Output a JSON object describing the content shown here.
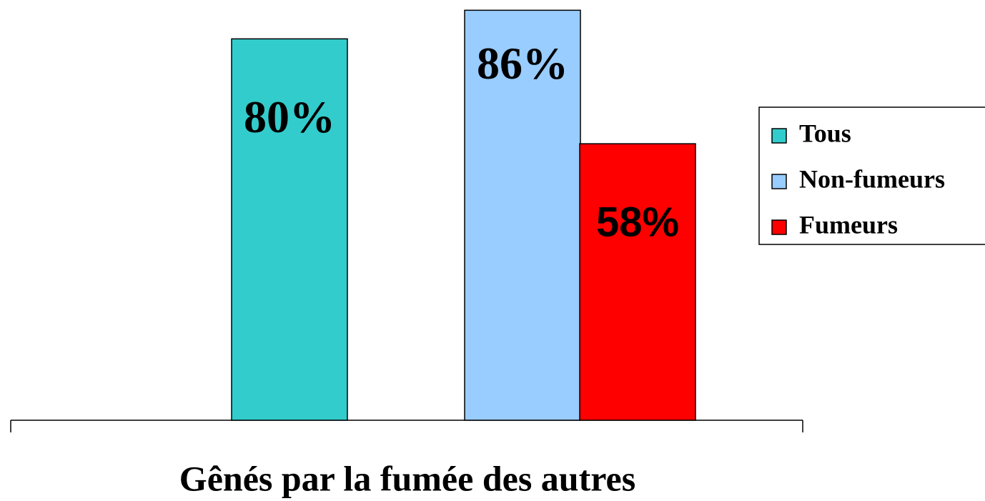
{
  "chart_data": {
    "type": "bar",
    "categories": [
      "Gênés par la fumée des autres"
    ],
    "series": [
      {
        "name": "Tous",
        "color": "#33cccc",
        "values": [
          80
        ],
        "value_labels": [
          "80%"
        ]
      },
      {
        "name": "Non-fumeurs",
        "color": "#99ccff",
        "values": [
          86
        ],
        "value_labels": [
          "86%"
        ]
      },
      {
        "name": "Fumeurs",
        "color": "#ff0000",
        "values": [
          58
        ],
        "value_labels": [
          "58%"
        ]
      }
    ],
    "ylim": [
      0,
      88
    ],
    "legend": "right"
  }
}
